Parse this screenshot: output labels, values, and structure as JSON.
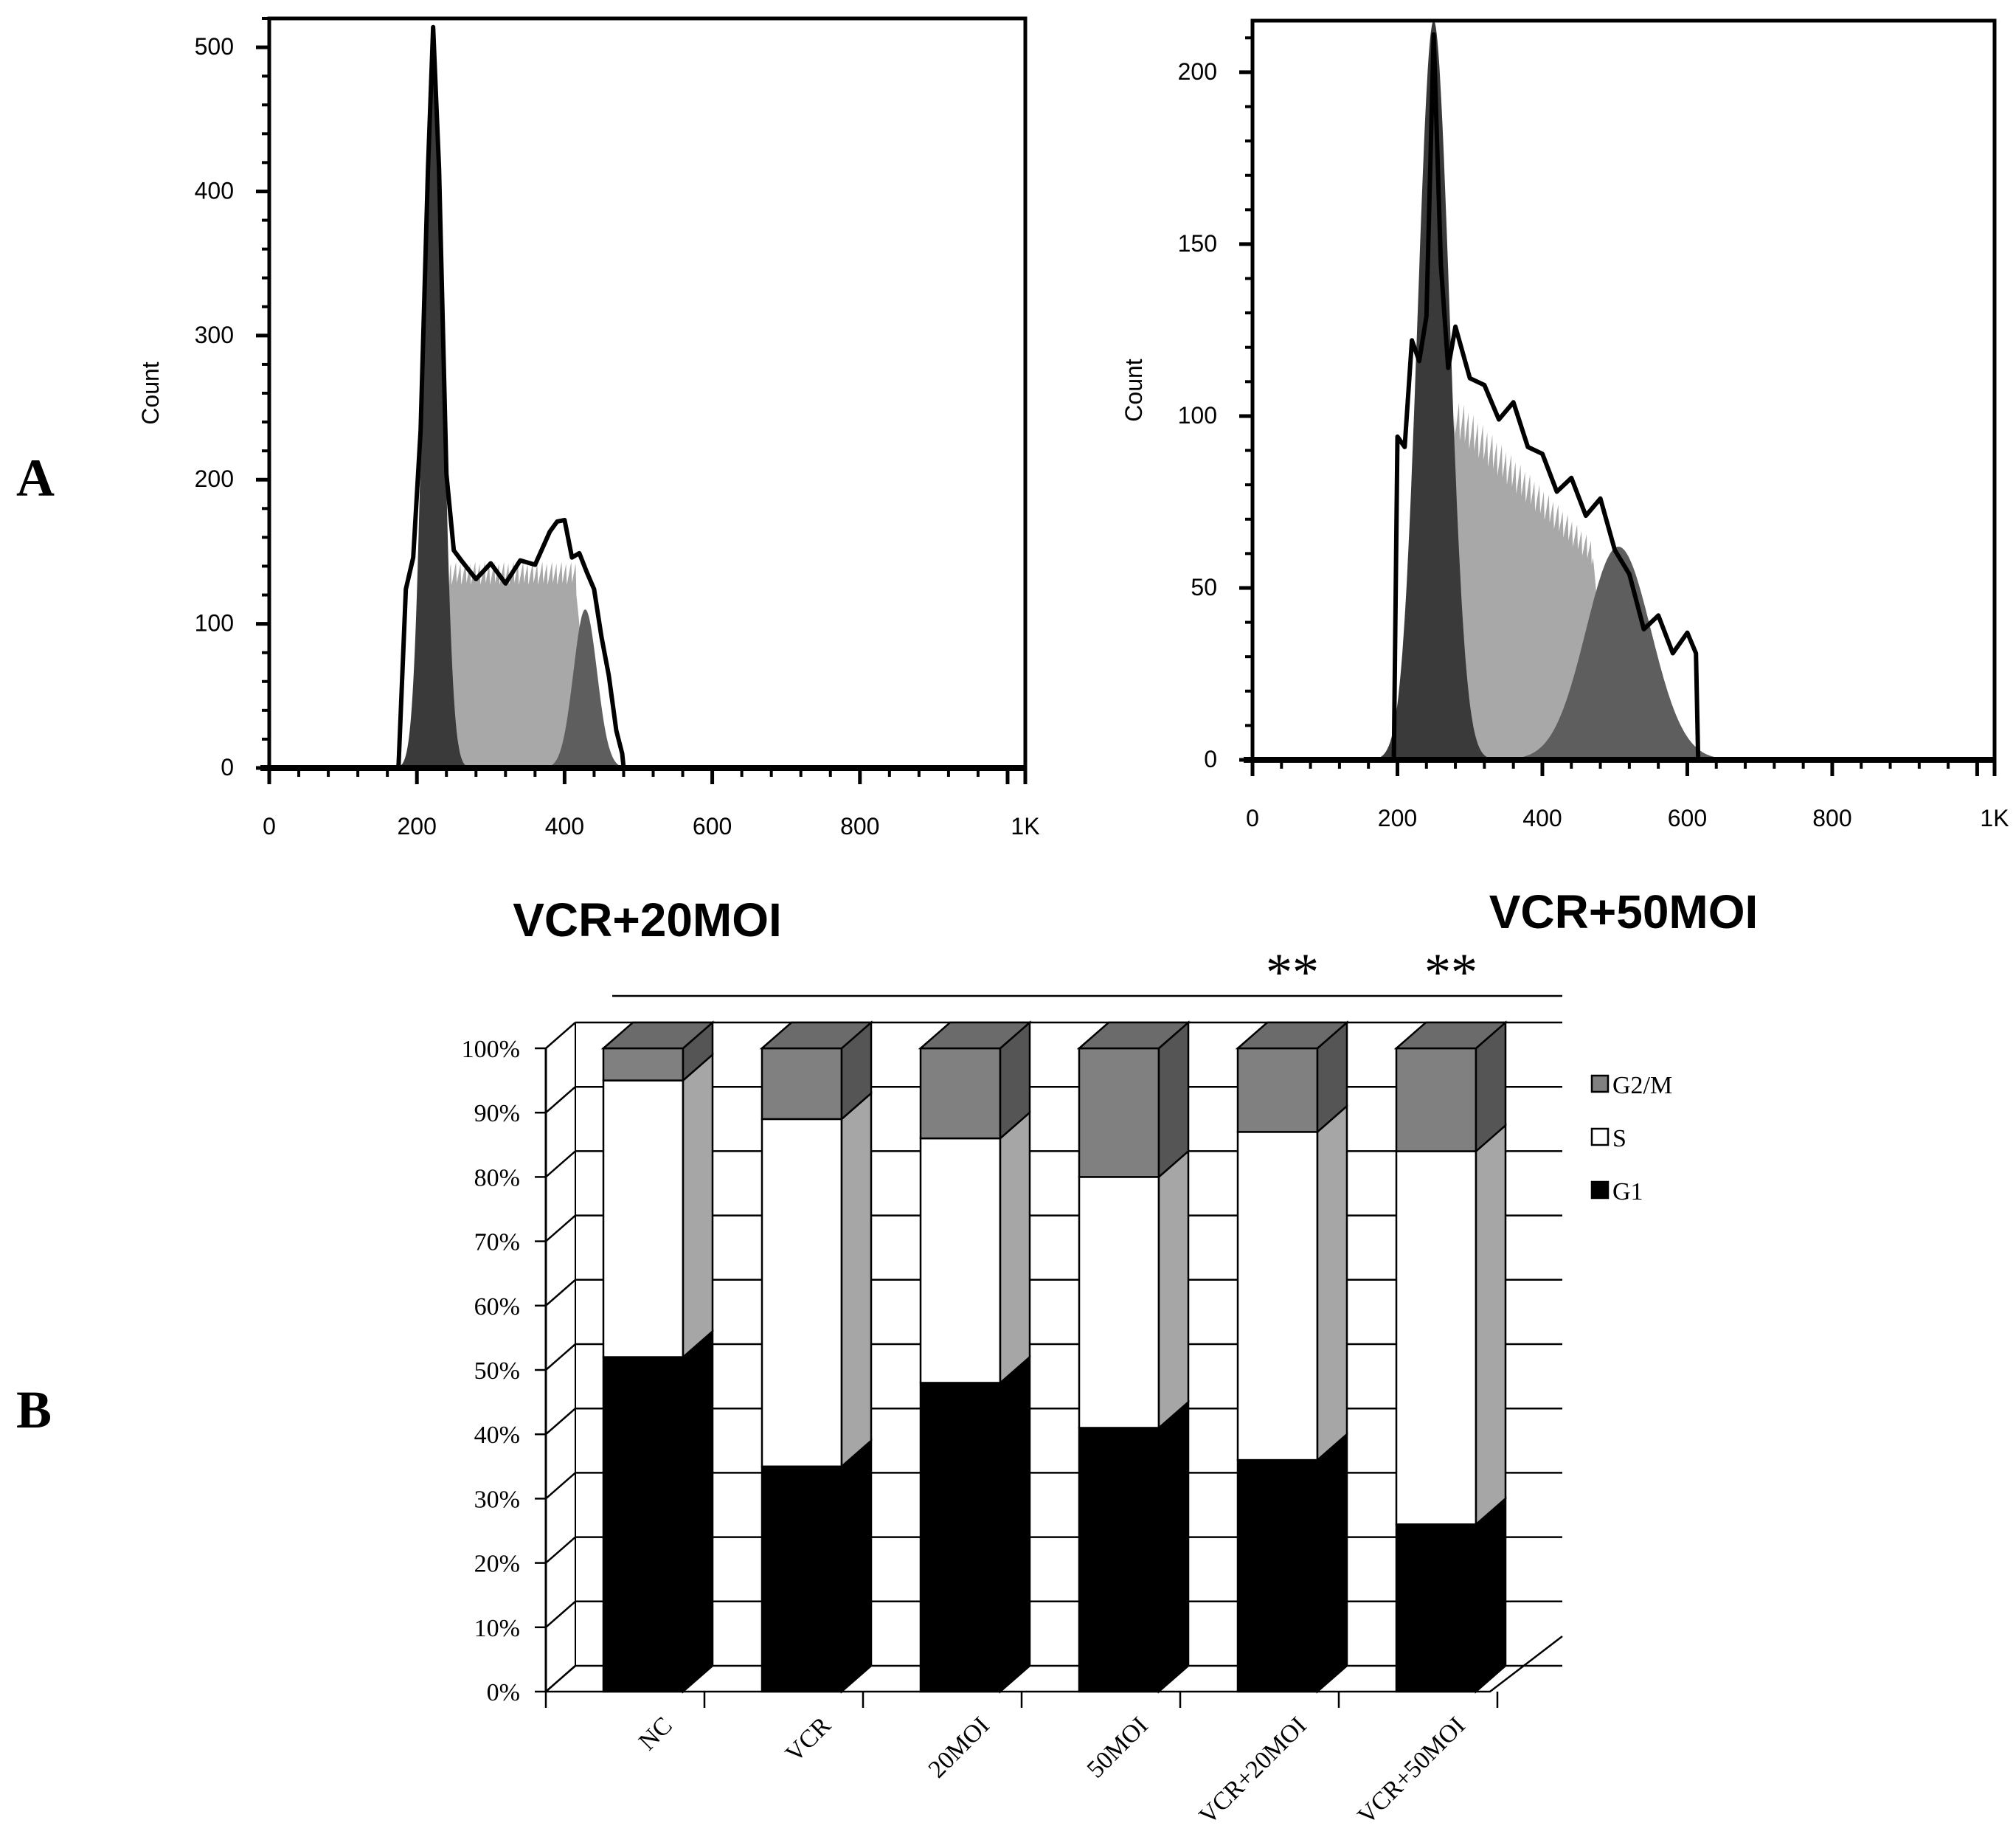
{
  "panel_labels": {
    "a": "A",
    "b": "B"
  },
  "colors": {
    "g1": "#000000",
    "g1_side": "#000000",
    "s": "#ffffff",
    "s_side": "#a6a6a6",
    "g2m": "#808080",
    "g2m_side": "#555555",
    "top_face": "#6b6b6b",
    "hist_g1": "#3a3a3a",
    "hist_s": "#a8a8a8",
    "hist_g2m": "#5e5e5e",
    "hist_outline": "#000000"
  },
  "chart_data": [
    {
      "type": "histogram",
      "title": "VCR+20MOI",
      "ylabel": "Count",
      "xlim": [
        0,
        1024
      ],
      "ylim": [
        0,
        520
      ],
      "xticks": [
        0,
        200,
        400,
        600,
        800,
        1024
      ],
      "xtick_labels": [
        "0",
        "200",
        "400",
        "600",
        "800",
        "1K"
      ],
      "yticks": [
        0,
        100,
        200,
        300,
        400,
        500
      ],
      "ytick_labels": [
        "0",
        "100",
        "200",
        "300",
        "400",
        "500"
      ],
      "series": [
        {
          "name": "G1",
          "kind": "gaussian",
          "mean": 222,
          "sd": 13,
          "peak": 510
        },
        {
          "name": "S",
          "kind": "plateau",
          "start": 245,
          "end": 415,
          "level": 135
        },
        {
          "name": "G2/M",
          "kind": "gaussian",
          "mean": 428,
          "sd": 16,
          "peak": 110
        }
      ],
      "outline": {
        "x": [
          0,
          175,
          185,
          195,
          205,
          215,
          222,
          230,
          240,
          250,
          260,
          280,
          300,
          320,
          340,
          360,
          380,
          390,
          400,
          410,
          420,
          430,
          440,
          450,
          460,
          470,
          478,
          480,
          1024
        ],
        "y": [
          0,
          0,
          120,
          150,
          230,
          420,
          510,
          420,
          200,
          155,
          140,
          135,
          138,
          132,
          140,
          145,
          160,
          175,
          168,
          150,
          145,
          140,
          120,
          95,
          60,
          30,
          10,
          0,
          0
        ]
      }
    },
    {
      "type": "histogram",
      "title": "VCR+50MOI",
      "ylabel": "Count",
      "xlim": [
        0,
        1024
      ],
      "ylim": [
        0,
        215
      ],
      "xticks": [
        0,
        200,
        400,
        600,
        800,
        1024
      ],
      "xtick_labels": [
        "0",
        "200",
        "400",
        "600",
        "800",
        "1K"
      ],
      "yticks": [
        0,
        50,
        100,
        150,
        200
      ],
      "ytick_labels": [
        "0",
        "50",
        "100",
        "150",
        "200"
      ],
      "series": [
        {
          "name": "G1",
          "kind": "gaussian",
          "mean": 250,
          "sd": 22,
          "peak": 215
        },
        {
          "name": "S",
          "kind": "ramp",
          "start": 280,
          "end": 470,
          "level_start": 100,
          "level_end": 60
        },
        {
          "name": "G2/M",
          "kind": "gaussian",
          "mean": 505,
          "sd": 45,
          "peak": 62
        }
      ],
      "outline": {
        "x": [
          0,
          195,
          200,
          210,
          220,
          230,
          240,
          250,
          260,
          270,
          280,
          300,
          320,
          340,
          360,
          380,
          400,
          420,
          440,
          460,
          480,
          500,
          520,
          540,
          560,
          580,
          600,
          612,
          615,
          1024
        ],
        "y": [
          0,
          0,
          90,
          95,
          118,
          120,
          125,
          215,
          140,
          118,
          122,
          115,
          105,
          103,
          100,
          95,
          85,
          82,
          78,
          75,
          72,
          65,
          50,
          42,
          38,
          35,
          33,
          35,
          0,
          0
        ]
      }
    },
    {
      "type": "bar",
      "stacked": true,
      "percent": true,
      "style": "3d",
      "categories": [
        "NC",
        "VCR",
        "20MOI",
        "50MOI",
        "VCR+20MOI",
        "VCR+50MOI"
      ],
      "series": [
        {
          "name": "G1",
          "values": [
            52,
            35,
            48,
            41,
            36,
            26
          ]
        },
        {
          "name": "S",
          "values": [
            43,
            54,
            38,
            39,
            51,
            58
          ]
        },
        {
          "name": "G2/M",
          "values": [
            5,
            11,
            14,
            20,
            13,
            16
          ]
        }
      ],
      "ylim": [
        0,
        100
      ],
      "yticks": [
        0,
        10,
        20,
        30,
        40,
        50,
        60,
        70,
        80,
        90,
        100
      ],
      "ytick_labels": [
        "0%",
        "10%",
        "20%",
        "30%",
        "40%",
        "50%",
        "60%",
        "70%",
        "80%",
        "90%",
        "100%"
      ],
      "legend_entries": [
        "G2/M",
        "S",
        "G1"
      ],
      "legend_position": "right",
      "annotations": [
        {
          "category": "VCR+20MOI",
          "text": "**"
        },
        {
          "category": "VCR+50MOI",
          "text": "**"
        }
      ]
    }
  ]
}
